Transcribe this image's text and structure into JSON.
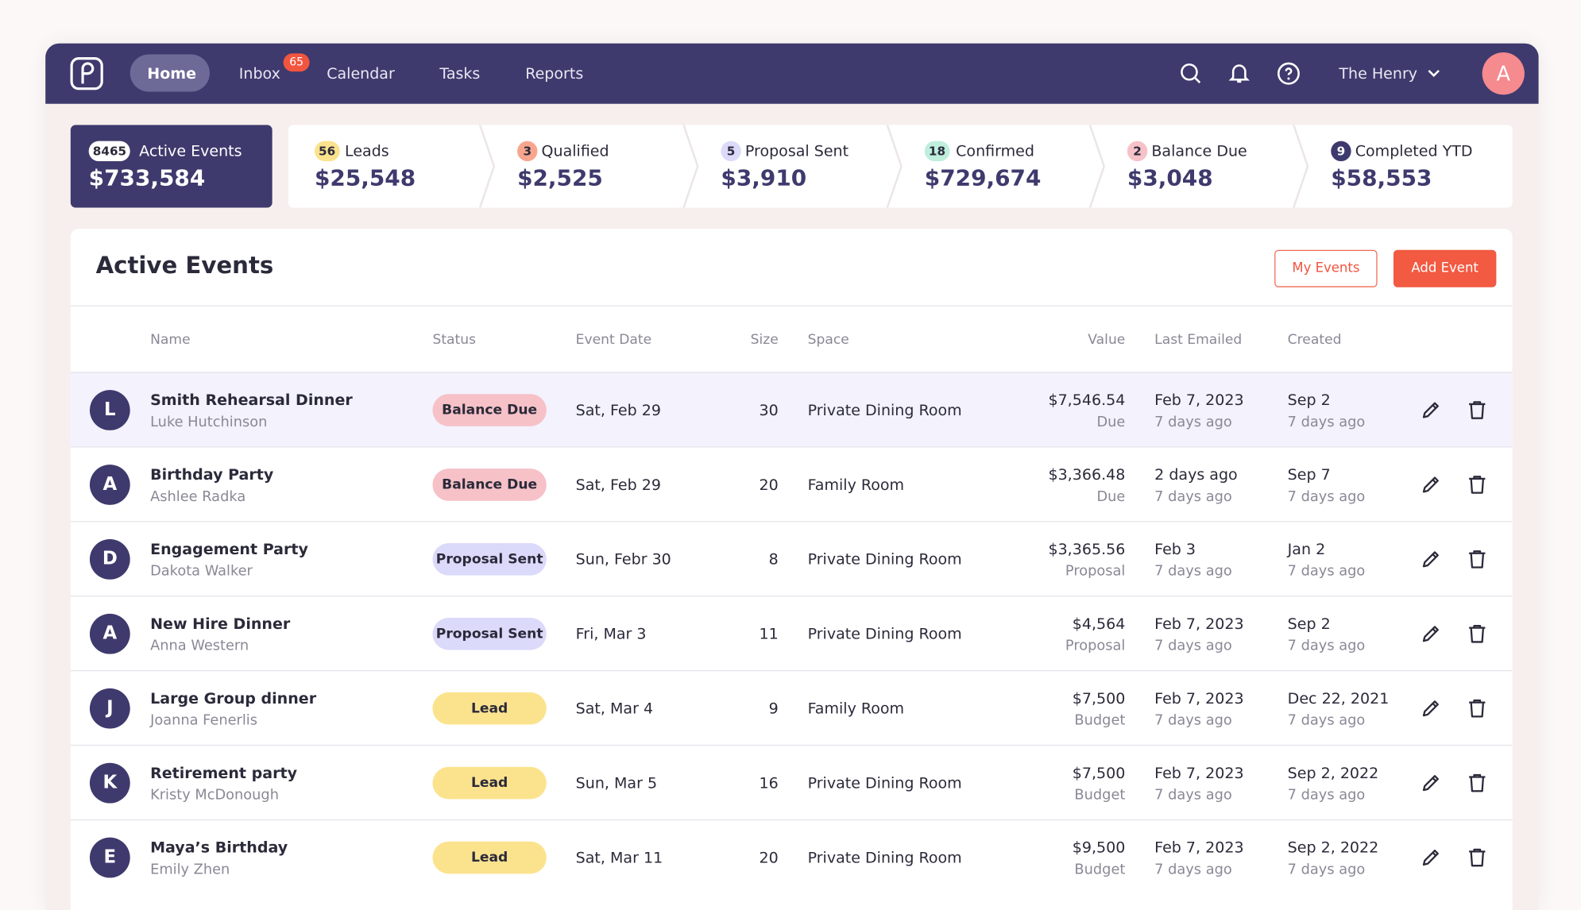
{
  "nav": {
    "items": [
      "Home",
      "Inbox",
      "Calendar",
      "Tasks",
      "Reports"
    ],
    "inbox_badge": "65",
    "venue": "The Henry",
    "avatar": "A"
  },
  "pipeline": [
    {
      "count": "8465",
      "label": "Active Events",
      "value": "$733,584"
    },
    {
      "count": "56",
      "label": "Leads",
      "value": "$25,548"
    },
    {
      "count": "3",
      "label": "Qualified",
      "value": "$2,525"
    },
    {
      "count": "5",
      "label": "Proposal Sent",
      "value": "$3,910"
    },
    {
      "count": "18",
      "label": "Confirmed",
      "value": "$729,674"
    },
    {
      "count": "2",
      "label": "Balance Due",
      "value": "$3,048"
    },
    {
      "count": "9",
      "label": "Completed YTD",
      "value": "$58,553"
    }
  ],
  "panel": {
    "title": "Active Events",
    "buttons": [
      "My Events",
      "Add Event"
    ]
  },
  "table": {
    "columns": [
      "Name",
      "Status",
      "Event Date",
      "Size",
      "Space",
      "Value",
      "Last Emailed",
      "Created"
    ],
    "rows": [
      {
        "initial": "L",
        "name": "Smith Rehearsal Dinner",
        "contact": "Luke Hutchinson",
        "status": "Balance Due",
        "date": "Sat, Feb 29",
        "size": "30",
        "space": "Private Dining Room",
        "value": "$7,546.54",
        "value_note": "Due",
        "emailed": "Feb 7, 2023",
        "emailed_ago": "7 days ago",
        "created": "Sep 2",
        "created_ago": "7 days ago"
      },
      {
        "initial": "A",
        "name": "Birthday Party",
        "contact": "Ashlee Radka",
        "status": "Balance Due",
        "date": "Sat, Feb 29",
        "size": "20",
        "space": "Family Room",
        "value": "$3,366.48",
        "value_note": "Due",
        "emailed": "2 days ago",
        "emailed_ago": "7 days ago",
        "created": "Sep 7",
        "created_ago": "7 days ago"
      },
      {
        "initial": "D",
        "name": "Engagement Party",
        "contact": "Dakota Walker",
        "status": "Proposal Sent",
        "date": "Sun, Febr 30",
        "size": "8",
        "space": "Private Dining Room",
        "value": "$3,365.56",
        "value_note": "Proposal",
        "emailed": "Feb 3",
        "emailed_ago": "7 days ago",
        "created": "Jan 2",
        "created_ago": "7 days ago"
      },
      {
        "initial": "A",
        "name": "New Hire Dinner",
        "contact": "Anna Western",
        "status": "Proposal Sent",
        "date": "Fri, Mar 3",
        "size": "11",
        "space": "Private Dining Room",
        "value": "$4,564",
        "value_note": "Proposal",
        "emailed": "Feb 7, 2023",
        "emailed_ago": "7 days ago",
        "created": "Sep 2",
        "created_ago": "7 days ago"
      },
      {
        "initial": "J",
        "name": "Large Group dinner",
        "contact": "Joanna Fenerlis",
        "status": "Lead",
        "date": "Sat, Mar 4",
        "size": "9",
        "space": "Family Room",
        "value": "$7,500",
        "value_note": "Budget",
        "emailed": "Feb 7, 2023",
        "emailed_ago": "7 days ago",
        "created": "Dec 22, 2021",
        "created_ago": "7 days ago"
      },
      {
        "initial": "K",
        "name": "Retirement party",
        "contact": "Kristy McDonough",
        "status": "Lead",
        "date": "Sun, Mar 5",
        "size": "16",
        "space": "Private Dining Room",
        "value": "$7,500",
        "value_note": "Budget",
        "emailed": "Feb 7, 2023",
        "emailed_ago": "7 days ago",
        "created": "Sep 2, 2022",
        "created_ago": "7 days ago"
      },
      {
        "initial": "E",
        "name": "Maya’s Birthday",
        "contact": "Emily Zhen",
        "status": "Lead",
        "date": "Sat, Mar 11",
        "size": "20",
        "space": "Private Dining Room",
        "value": "$9,500",
        "value_note": "Budget",
        "emailed": "Feb 7, 2023",
        "emailed_ago": "7 days ago",
        "created": "Sep 2, 2022",
        "created_ago": "7 days ago"
      }
    ]
  }
}
